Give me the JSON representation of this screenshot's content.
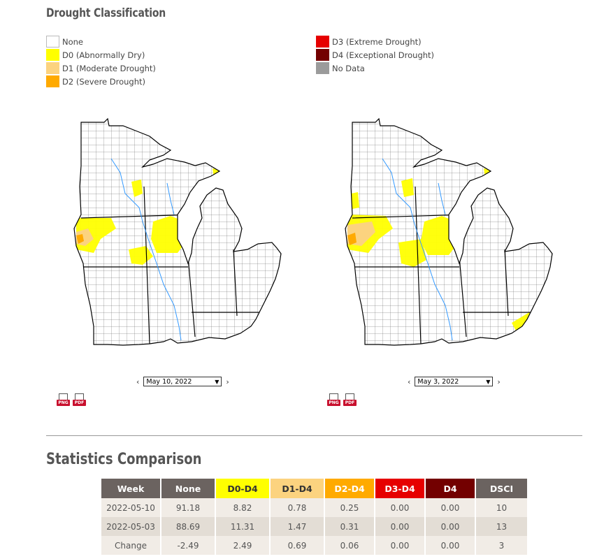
{
  "section": {
    "title": "Drought Classification"
  },
  "legend": {
    "items": [
      {
        "label": "None",
        "color": "#ffffff"
      },
      {
        "label": "D0 (Abnormally Dry)",
        "color": "#ffff00"
      },
      {
        "label": "D1 (Moderate Drought)",
        "color": "#fcd37f"
      },
      {
        "label": "D2 (Severe Drought)",
        "color": "#ffaa00"
      },
      {
        "label": "D3 (Extreme Drought)",
        "color": "#e60000"
      },
      {
        "label": "D4 (Exceptional Drought)",
        "color": "#730000"
      },
      {
        "label": "No Data",
        "color": "#9b9b9b"
      }
    ]
  },
  "maps": {
    "left": {
      "date": "May 10, 2022",
      "png_label": "PNG",
      "pdf_label": "PDF"
    },
    "right": {
      "date": "May 3, 2022",
      "png_label": "PNG",
      "pdf_label": "PDF"
    }
  },
  "nav": {
    "prev_icon": "chevron-left-icon",
    "next_icon": "chevron-right-icon",
    "prev_glyph": "‹",
    "next_glyph": "›",
    "dropdown_glyph": "▼"
  },
  "stats": {
    "title": "Statistics Comparison",
    "headers": [
      "Week",
      "None",
      "D0-D4",
      "D1-D4",
      "D2-D4",
      "D3-D4",
      "D4",
      "DSCI"
    ],
    "header_colors": [
      "#6b6360",
      "#6b6360",
      "#ffff00",
      "#fcd37f",
      "#ffaa00",
      "#e60000",
      "#730000",
      "#6b6360"
    ],
    "header_text_colors": [
      "#ffffff",
      "#ffffff",
      "#333333",
      "#333333",
      "#ffffff",
      "#ffffff",
      "#ffffff",
      "#ffffff"
    ],
    "rows": [
      [
        "2022-05-10",
        "91.18",
        "8.82",
        "0.78",
        "0.25",
        "0.00",
        "0.00",
        "10"
      ],
      [
        "2022-05-03",
        "88.69",
        "11.31",
        "1.47",
        "0.31",
        "0.00",
        "0.00",
        "13"
      ],
      [
        "Change",
        "-2.49",
        "2.49",
        "0.69",
        "0.06",
        "0.00",
        "0.00",
        "3"
      ]
    ]
  }
}
